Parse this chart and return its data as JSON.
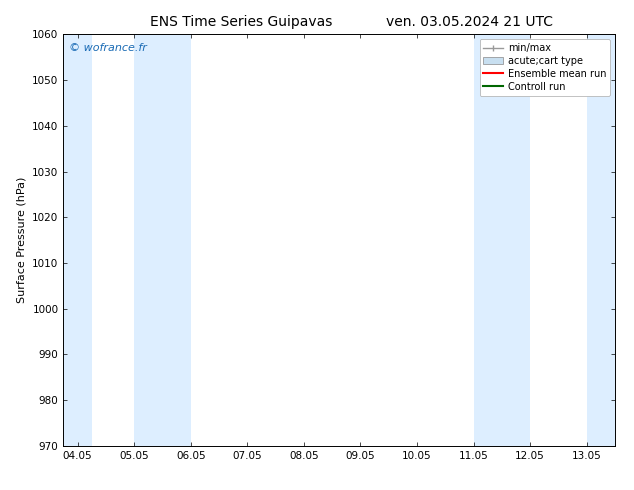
{
  "title_left": "ENS Time Series Guipavas",
  "title_right": "ven. 03.05.2024 21 UTC",
  "ylabel": "Surface Pressure (hPa)",
  "ylim": [
    970,
    1060
  ],
  "yticks": [
    970,
    980,
    990,
    1000,
    1010,
    1020,
    1030,
    1040,
    1050,
    1060
  ],
  "xtick_labels": [
    "04.05",
    "05.05",
    "06.05",
    "07.05",
    "08.05",
    "09.05",
    "10.05",
    "11.05",
    "12.05",
    "13.05"
  ],
  "xtick_positions": [
    0,
    1,
    2,
    3,
    4,
    5,
    6,
    7,
    8,
    9
  ],
  "xlim_start": -0.25,
  "xlim_end": 9.5,
  "watermark": "© wofrance.fr",
  "watermark_color": "#1a6bb5",
  "bg_color": "#ffffff",
  "shaded_bands": [
    {
      "x_start": -0.25,
      "x_end": 0.25,
      "color": "#ddeeff"
    },
    {
      "x_start": 1.0,
      "x_end": 2.0,
      "color": "#ddeeff"
    },
    {
      "x_start": 7.0,
      "x_end": 8.0,
      "color": "#ddeeff"
    },
    {
      "x_start": 9.0,
      "x_end": 9.5,
      "color": "#ddeeff"
    }
  ],
  "legend_entries": [
    {
      "label": "min/max",
      "color": "#999999",
      "style": "errorbar"
    },
    {
      "label": "acute;cart type",
      "color": "#c8dff0",
      "style": "fill"
    },
    {
      "label": "Ensemble mean run",
      "color": "#ff0000",
      "style": "line"
    },
    {
      "label": "Controll run",
      "color": "#006600",
      "style": "line"
    }
  ],
  "title_fontsize": 10,
  "axis_label_fontsize": 8,
  "tick_fontsize": 7.5,
  "legend_fontsize": 7
}
